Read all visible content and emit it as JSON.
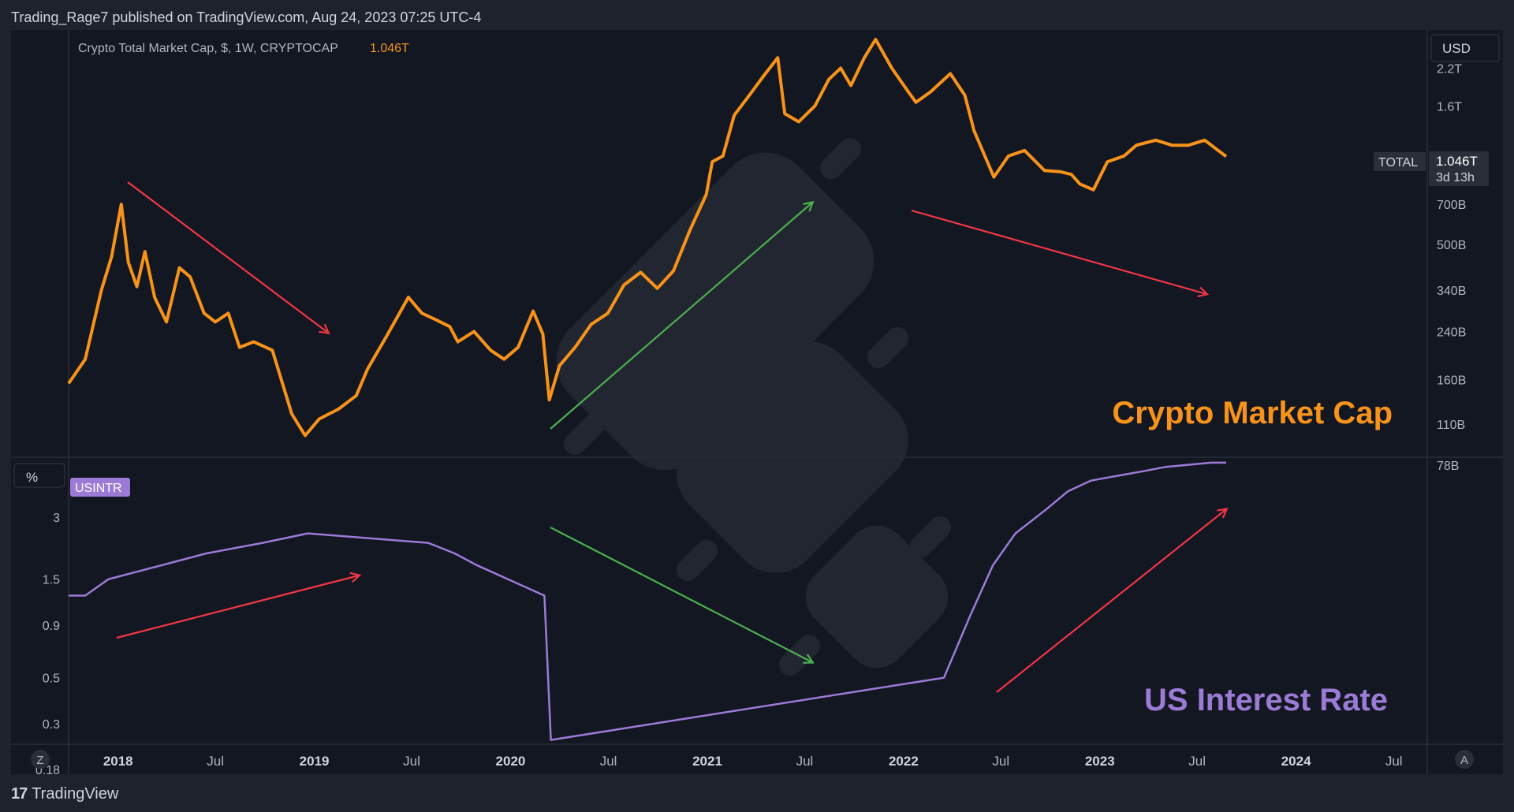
{
  "header": {
    "text": "Trading_Rage7 published on TradingView.com, Aug 24, 2023 07:25 UTC-4"
  },
  "footer": {
    "brand": "TradingView",
    "logo_glyph": "17"
  },
  "top_pane": {
    "legend": "Crypto Total Market Cap, $, 1W, CRYPTOCAP",
    "last_value": "1.046T",
    "currency_button": "USD",
    "symbol_tag": "TOTAL",
    "price_tag": "1.046T",
    "countdown": "3d 13h",
    "big_label": "Crypto Market Cap",
    "y_ticks": [
      "2.2T",
      "1.6T",
      "700B",
      "500B",
      "340B",
      "240B",
      "160B",
      "110B",
      "78B"
    ]
  },
  "bottom_pane": {
    "unit_button": "%",
    "series_tag": "USINTR",
    "big_label": "US Interest Rate",
    "y_ticks": [
      "3",
      "1.5",
      "0.9",
      "0.5",
      "0.3",
      "0.18"
    ]
  },
  "x_axis": {
    "ticks": [
      "2018",
      "Jul",
      "2019",
      "Jul",
      "2020",
      "Jul",
      "2021",
      "Jul",
      "2022",
      "Jul",
      "2023",
      "Jul",
      "2024",
      "Jul"
    ],
    "left_button": "Z",
    "right_button": "A"
  },
  "colors": {
    "background": "#131722",
    "panel": "#1e222d",
    "market_cap_line": "#f7931a",
    "interest_line": "#9c7bd6",
    "red_arrow": "#f23645",
    "green_arrow": "#4caf50",
    "text": "#d1d4dc"
  },
  "chart_data": [
    {
      "type": "line",
      "title": "Crypto Total Market Cap, $, 1W, CRYPTOCAP",
      "ylabel": "USD",
      "y_scale": "log",
      "ylim": [
        78000000000,
        2800000000000
      ],
      "x_range": [
        "2017-10-01",
        "2024-09-01"
      ],
      "series": [
        {
          "name": "TOTAL",
          "x": [
            "2017-10-01",
            "2017-11-01",
            "2017-12-01",
            "2017-12-20",
            "2018-01-07",
            "2018-01-20",
            "2018-02-05",
            "2018-02-20",
            "2018-03-10",
            "2018-04-01",
            "2018-04-25",
            "2018-05-15",
            "2018-06-10",
            "2018-07-01",
            "2018-07-25",
            "2018-08-15",
            "2018-09-10",
            "2018-10-15",
            "2018-11-20",
            "2018-12-15",
            "2019-01-10",
            "2019-02-15",
            "2019-03-20",
            "2019-04-10",
            "2019-05-15",
            "2019-06-25",
            "2019-07-20",
            "2019-08-15",
            "2019-09-10",
            "2019-09-25",
            "2019-10-25",
            "2019-11-25",
            "2019-12-20",
            "2020-01-15",
            "2020-02-12",
            "2020-03-01",
            "2020-03-13",
            "2020-04-01",
            "2020-04-30",
            "2020-05-30",
            "2020-06-30",
            "2020-07-30",
            "2020-08-30",
            "2020-09-30",
            "2020-10-30",
            "2020-11-30",
            "2020-12-30",
            "2021-01-10",
            "2021-01-30",
            "2021-02-20",
            "2021-03-20",
            "2021-04-15",
            "2021-05-12",
            "2021-05-25",
            "2021-06-20",
            "2021-07-20",
            "2021-08-15",
            "2021-09-06",
            "2021-09-25",
            "2021-10-20",
            "2021-11-10",
            "2021-12-10",
            "2022-01-10",
            "2022-01-24",
            "2022-02-20",
            "2022-03-29",
            "2022-04-25",
            "2022-05-12",
            "2022-06-18",
            "2022-07-15",
            "2022-08-14",
            "2022-09-20",
            "2022-10-20",
            "2022-11-09",
            "2022-11-25",
            "2022-12-20",
            "2023-01-15",
            "2023-02-15",
            "2023-03-10",
            "2023-04-15",
            "2023-05-15",
            "2023-06-15",
            "2023-07-15",
            "2023-08-24"
          ],
          "values": [
            155000000000.0,
            190000000000.0,
            340000000000.0,
            450000000000.0,
            700000000000.0,
            430000000000.0,
            350000000000.0,
            470000000000.0,
            320000000000.0,
            260000000000.0,
            410000000000.0,
            380000000000.0,
            280000000000.0,
            260000000000.0,
            280000000000.0,
            210000000000.0,
            220000000000.0,
            205000000000.0,
            120000000000.0,
            100000000000.0,
            115000000000.0,
            125000000000.0,
            140000000000.0,
            175000000000.0,
            230000000000.0,
            320000000000.0,
            280000000000.0,
            265000000000.0,
            250000000000.0,
            220000000000.0,
            240000000000.0,
            205000000000.0,
            190000000000.0,
            210000000000.0,
            285000000000.0,
            235000000000.0,
            135000000000.0,
            180000000000.0,
            210000000000.0,
            255000000000.0,
            280000000000.0,
            355000000000.0,
            395000000000.0,
            345000000000.0,
            400000000000.0,
            565000000000.0,
            760000000000.0,
            1000000000000.0,
            1050000000000.0,
            1480000000000.0,
            1750000000000.0,
            2050000000000.0,
            2400000000000.0,
            1500000000000.0,
            1400000000000.0,
            1600000000000.0,
            2000000000000.0,
            2200000000000.0,
            1900000000000.0,
            2400000000000.0,
            2800000000000.0,
            2200000000000.0,
            1800000000000.0,
            1650000000000.0,
            1800000000000.0,
            2100000000000.0,
            1750000000000.0,
            1300000000000.0,
            880000000000.0,
            1050000000000.0,
            1100000000000.0,
            930000000000.0,
            920000000000.0,
            900000000000.0,
            830000000000.0,
            790000000000.0,
            1000000000000.0,
            1050000000000.0,
            1150000000000.0,
            1200000000000.0,
            1150000000000.0,
            1150000000000.0,
            1200000000000.0,
            1046000000000.0
          ]
        }
      ],
      "annotations": [
        "Crypto Market Cap"
      ]
    },
    {
      "type": "line",
      "title": "USINTR",
      "ylabel": "%",
      "y_scale": "log",
      "ylim": [
        0.18,
        6
      ],
      "x_range": [
        "2017-10-01",
        "2024-09-01"
      ],
      "series": [
        {
          "name": "USINTR",
          "x": [
            "2017-10-01",
            "2017-11-01",
            "2017-12-14",
            "2018-03-22",
            "2018-06-14",
            "2018-09-27",
            "2018-12-20",
            "2019-08-01",
            "2019-09-19",
            "2019-10-31",
            "2020-03-04",
            "2020-03-16",
            "2022-03-17",
            "2022-05-05",
            "2022-06-16",
            "2022-07-28",
            "2022-09-22",
            "2022-11-03",
            "2022-12-15",
            "2023-02-02",
            "2023-03-23",
            "2023-05-04",
            "2023-07-27",
            "2023-08-24"
          ],
          "values": [
            1.25,
            1.25,
            1.5,
            1.75,
            2.0,
            2.25,
            2.5,
            2.25,
            2.0,
            1.75,
            1.25,
            0.25,
            0.5,
            1.0,
            1.75,
            2.5,
            3.25,
            4.0,
            4.5,
            4.75,
            5.0,
            5.25,
            5.5,
            5.5
          ]
        }
      ],
      "annotations": [
        "US Interest Rate"
      ]
    }
  ]
}
